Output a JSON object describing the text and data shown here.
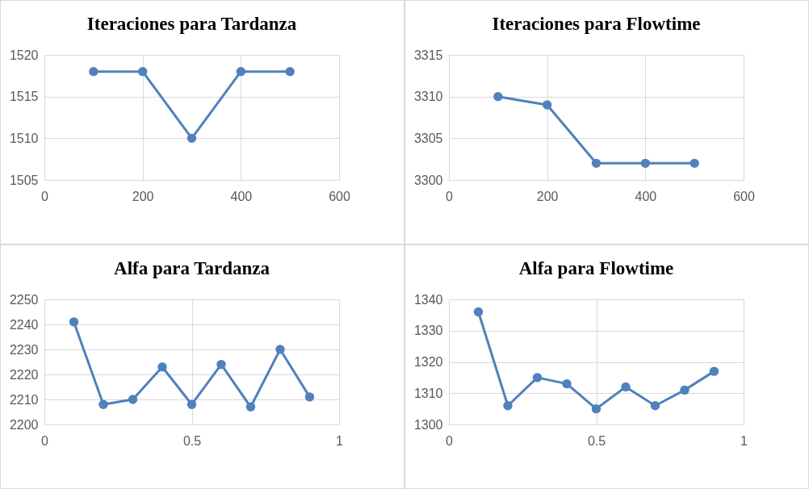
{
  "chart_data": [
    {
      "type": "line",
      "title": "Iteraciones para Tardanza",
      "x": [
        100,
        200,
        300,
        400,
        500
      ],
      "xlim": [
        0,
        600
      ],
      "xticks": [
        0,
        200,
        400,
        600
      ],
      "ylim": [
        1505,
        1520
      ],
      "yticks": [
        1505,
        1510,
        1515,
        1520
      ],
      "grid": true,
      "marker": "circle",
      "line_style": "solid",
      "series": [
        {
          "color": "#4f81bd",
          "values": [
            1518,
            1518,
            1510,
            1518,
            1518
          ]
        }
      ]
    },
    {
      "type": "line",
      "title": "Iteraciones para Flowtime",
      "x": [
        100,
        200,
        300,
        400,
        500
      ],
      "xlim": [
        0,
        600
      ],
      "xticks": [
        0,
        200,
        400,
        600
      ],
      "ylim": [
        3300,
        3315
      ],
      "yticks": [
        3300,
        3305,
        3310,
        3315
      ],
      "grid": true,
      "marker": "circle",
      "line_style": "solid",
      "series": [
        {
          "color": "#4f81bd",
          "values": [
            3310,
            3309,
            3302,
            3302,
            3302
          ]
        }
      ]
    },
    {
      "type": "line",
      "title": "Alfa para Tardanza",
      "x": [
        0.1,
        0.2,
        0.3,
        0.4,
        0.5,
        0.6,
        0.7,
        0.8,
        0.9
      ],
      "xlim": [
        0,
        1
      ],
      "xticks": [
        0,
        0.5,
        1
      ],
      "ylim": [
        2200,
        2250
      ],
      "yticks": [
        2200,
        2210,
        2220,
        2230,
        2240,
        2250
      ],
      "grid": true,
      "marker": "circle",
      "line_style": "solid",
      "series": [
        {
          "color": "#4f81bd",
          "values": [
            2241,
            2208,
            2210,
            2223,
            2208,
            2224,
            2207,
            2230,
            2211
          ]
        }
      ]
    },
    {
      "type": "line",
      "title": "Alfa para Flowtime",
      "x": [
        0.1,
        0.2,
        0.3,
        0.4,
        0.5,
        0.6,
        0.7,
        0.8,
        0.9
      ],
      "xlim": [
        0,
        1
      ],
      "xticks": [
        0,
        0.5,
        1
      ],
      "ylim": [
        1300,
        1340
      ],
      "yticks": [
        1300,
        1310,
        1320,
        1330,
        1340
      ],
      "grid": true,
      "marker": "circle",
      "line_style": "solid",
      "series": [
        {
          "color": "#4f81bd",
          "values": [
            1336,
            1306,
            1315,
            1313,
            1305,
            1312,
            1306,
            1311,
            1317
          ]
        }
      ]
    }
  ]
}
